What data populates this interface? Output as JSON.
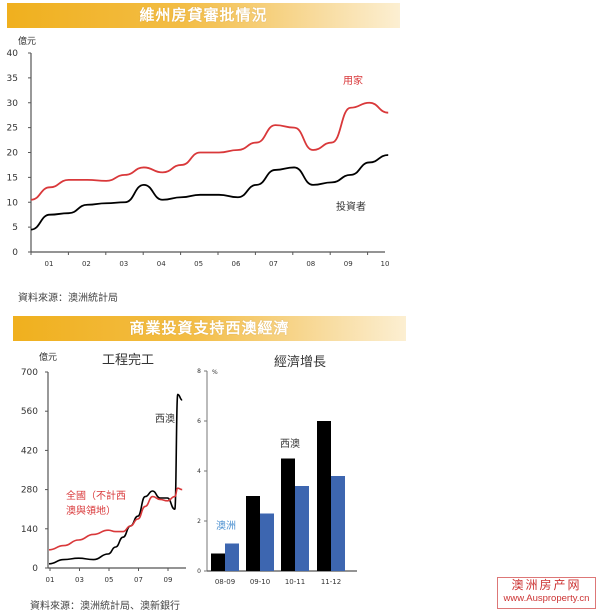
{
  "section1": {
    "title": "維州房貸審批情況",
    "source": "資料來源：澳洲統計局"
  },
  "section2": {
    "title": "商業投資支持西澳經濟",
    "source": "資料來源：澳洲統計局、澳新銀行"
  },
  "watermark": {
    "name": "澳洲房产网",
    "url": "www.Ausproperty.cn"
  },
  "chart_data": [
    {
      "type": "line",
      "title": "維州房貸審批情況",
      "ylabel": "億元",
      "xlabel": "",
      "ylim": [
        0,
        40
      ],
      "yticks": [
        0,
        5,
        10,
        15,
        20,
        25,
        30,
        35,
        40
      ],
      "xticks": [
        "01",
        "02",
        "03",
        "04",
        "05",
        "06",
        "07",
        "08",
        "09",
        "10"
      ],
      "grid": false,
      "x": [
        2000.5,
        2001.0,
        2001.5,
        2002.0,
        2002.5,
        2003.0,
        2003.5,
        2004.0,
        2004.5,
        2005.0,
        2005.5,
        2006.0,
        2006.5,
        2007.0,
        2007.5,
        2008.0,
        2008.5,
        2009.0,
        2009.5,
        2010.0
      ],
      "series": [
        {
          "name": "用家",
          "color": "#d9383a",
          "values": [
            10.5,
            13.0,
            14.5,
            14.5,
            14.3,
            15.5,
            17.0,
            16.0,
            17.5,
            20.0,
            20.0,
            20.5,
            22.0,
            25.5,
            25.0,
            20.5,
            22.0,
            29.0,
            30.0,
            28.0
          ]
        },
        {
          "name": "投資者",
          "color": "#000000",
          "values": [
            4.5,
            7.5,
            7.8,
            9.5,
            9.8,
            10.0,
            13.5,
            10.5,
            11.0,
            11.5,
            11.5,
            11.0,
            13.5,
            16.5,
            17.0,
            13.5,
            14.0,
            15.5,
            18.0,
            19.5
          ]
        }
      ],
      "annotations": [
        "用家",
        "投資者"
      ]
    },
    {
      "type": "line",
      "title": "工程完工",
      "ylabel": "億元",
      "ylim": [
        0,
        700
      ],
      "yticks": [
        0,
        140,
        280,
        420,
        560,
        700
      ],
      "xticks": [
        "01",
        "03",
        "05",
        "07",
        "09"
      ],
      "grid": false,
      "x": [
        2001,
        2002,
        2003,
        2004,
        2005,
        2005.5,
        2006,
        2006.5,
        2007,
        2007.5,
        2008,
        2008.5,
        2009,
        2009.5,
        2009.7,
        2010
      ],
      "series": [
        {
          "name": "西澳",
          "color": "#000000",
          "values": [
            15,
            30,
            35,
            30,
            50,
            75,
            110,
            150,
            185,
            255,
            275,
            250,
            250,
            210,
            620,
            600
          ]
        },
        {
          "name": "全國（不計西澳與領地）",
          "color": "#d9383a",
          "values": [
            65,
            80,
            100,
            120,
            135,
            130,
            130,
            150,
            175,
            220,
            255,
            245,
            240,
            255,
            285,
            280
          ]
        }
      ],
      "annotations": [
        "西澳",
        "全國（不計西澳與領地）"
      ]
    },
    {
      "type": "bar",
      "title": "經濟增長",
      "ylabel": "%",
      "ylim": [
        0,
        8
      ],
      "yticks": [
        0,
        2,
        4,
        6,
        8
      ],
      "categories": [
        "08-09",
        "09-10",
        "10-11",
        "11-12"
      ],
      "series": [
        {
          "name": "西澳",
          "color": "#000000",
          "values": [
            0.7,
            3.0,
            4.5,
            6.0
          ]
        },
        {
          "name": "澳洲",
          "color": "#3d66b0",
          "values": [
            1.1,
            2.3,
            3.4,
            3.8
          ]
        }
      ],
      "grid": false,
      "annotations": [
        "西澳",
        "澳洲"
      ]
    }
  ]
}
